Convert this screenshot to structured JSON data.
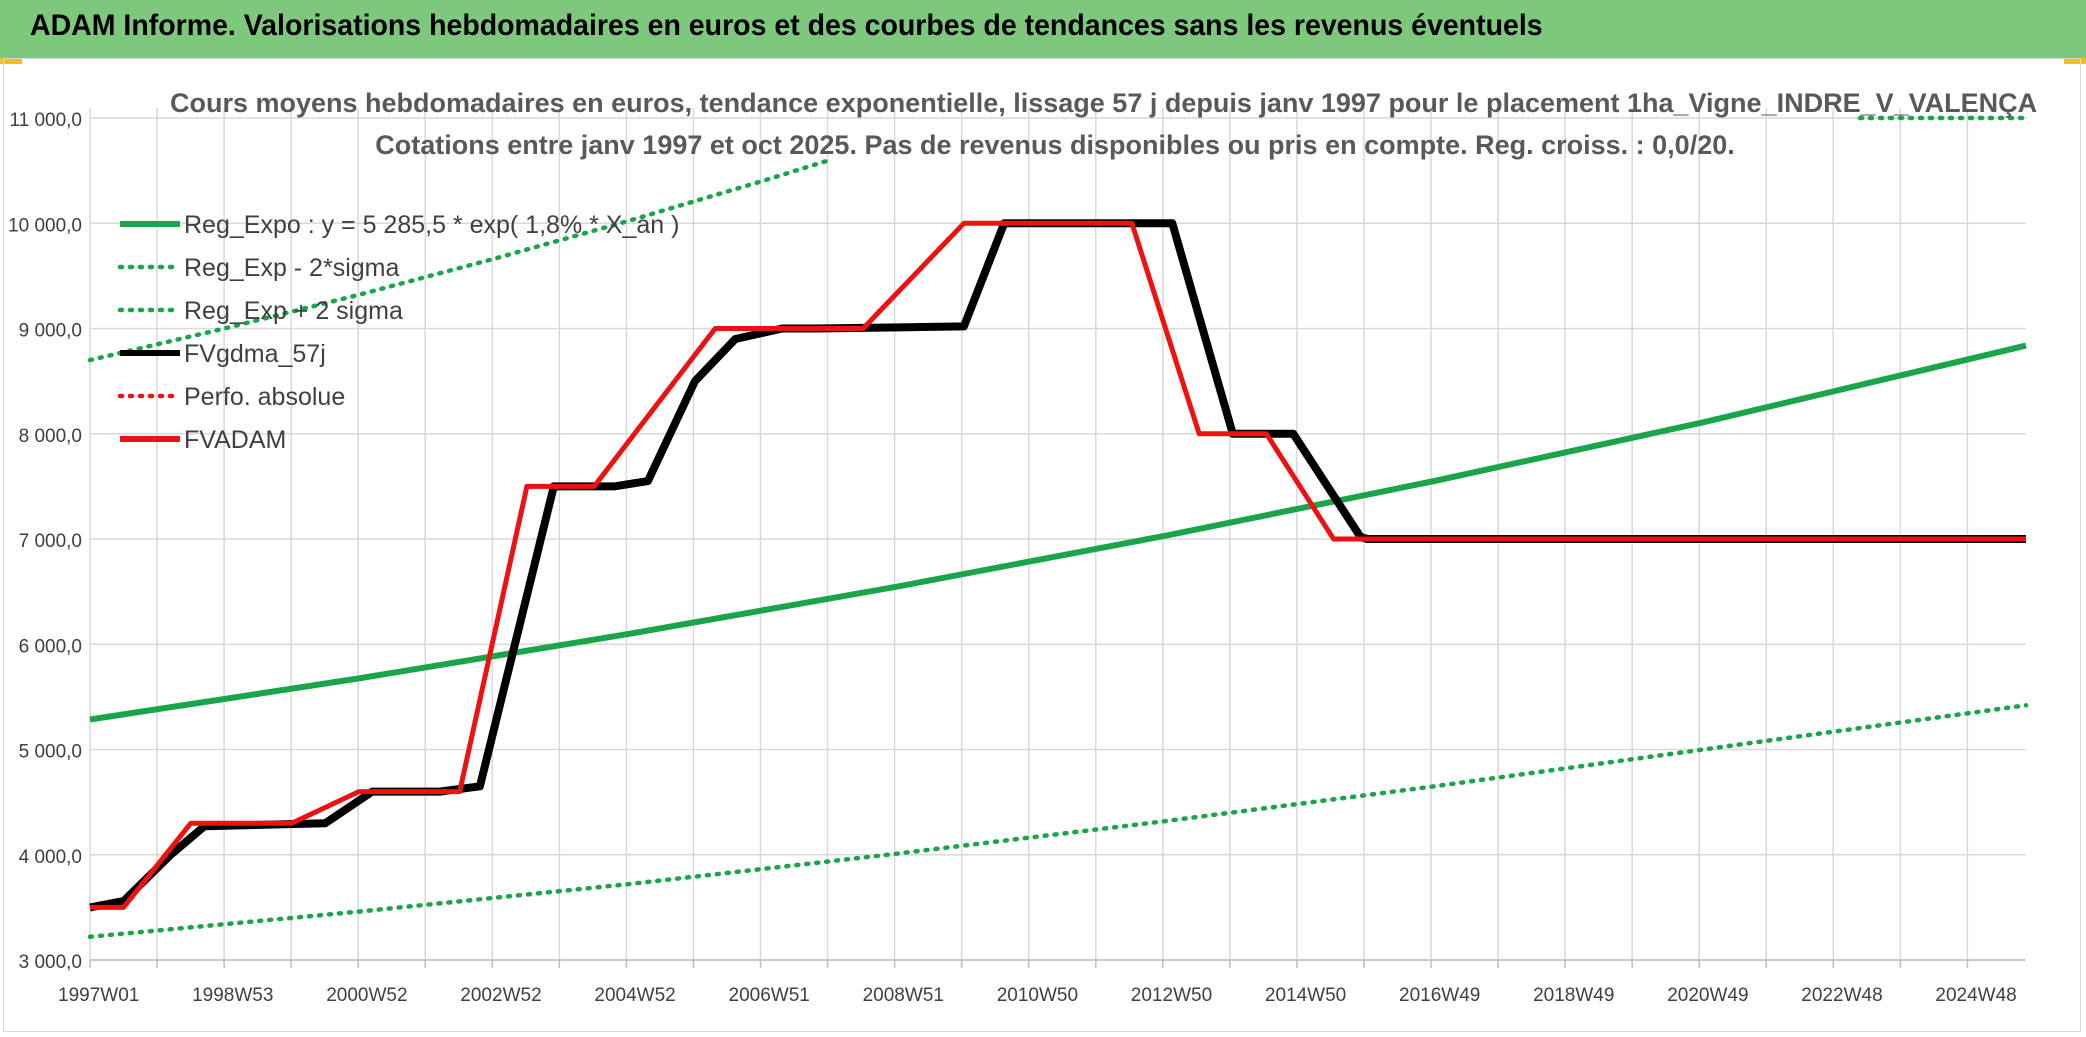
{
  "header": {
    "title": "ADAM Informe. Valorisations hebdomadaires en euros et des courbes de tendances sans les revenus éventuels"
  },
  "colors": {
    "header_bg": "#7dc87c",
    "green": "#1aa54a",
    "black": "#000000",
    "red": "#ee1111",
    "grid": "#d9d9d9"
  },
  "chart_data": {
    "type": "line",
    "title": "Cours moyens hebdomadaires en euros, tendance exponentielle, lissage 57 j depuis janv 1997 pour le placement 1ha_Vigne_INDRE_V_VALENÇA",
    "subtitle": "Cotations entre janv 1997 et oct 2025. Pas de revenus disponibles ou pris en compte. Reg. croiss. : 0,0/20.",
    "y_ticks": [
      "3 000,0",
      "4 000,0",
      "5 000,0",
      "6 000,0",
      "7 000,0",
      "8 000,0",
      "9 000,0",
      "10 000,0",
      "11 000,0"
    ],
    "x_ticks": [
      "1997W01",
      "1998W53",
      "2000W52",
      "2002W52",
      "2004W52",
      "2006W51",
      "2008W51",
      "2010W50",
      "2012W50",
      "2014W50",
      "2016W49",
      "2018W49",
      "2020W49",
      "2022W48",
      "2024W48"
    ],
    "ylim": [
      3000,
      11000
    ],
    "xlim": [
      1997.0,
      2025.8
    ],
    "grid": true,
    "legend_position": "top-left",
    "series": [
      {
        "name": "Reg_Expo : y = 5 285,5 * exp( 1,8% * X_an )",
        "style": "solid",
        "color": "#1aa54a",
        "x": [
          1997.0,
          2001.0,
          2005.0,
          2009.0,
          2013.0,
          2017.0,
          2021.0,
          2025.8
        ],
        "values": [
          5285.5,
          5676,
          6096,
          6547,
          7031,
          7551,
          8109,
          8838
        ]
      },
      {
        "name": "Reg_Exp - 2*sigma",
        "style": "dotted",
        "color": "#1aa54a",
        "x": [
          1997.0,
          2001.0,
          2005.0,
          2009.0,
          2013.0,
          2017.0,
          2021.0,
          2025.8
        ],
        "values": [
          3220,
          3460,
          3720,
          4010,
          4320,
          4650,
          5000,
          5420
        ]
      },
      {
        "name": "Reg_Exp + 2 sigma",
        "style": "dotted",
        "color": "#1aa54a",
        "x": [
          1997.0,
          1999.0,
          2001.0,
          2003.0,
          2005.0,
          2007.0,
          2008.0
        ],
        "values": [
          8700,
          9000,
          9320,
          9660,
          10020,
          10400,
          10600
        ]
      },
      {
        "name": "FVgdma_57j",
        "style": "solid",
        "color": "#000000",
        "x": [
          1997.0,
          1997.5,
          1998.2,
          1998.7,
          2000.5,
          2001.2,
          2002.2,
          2002.8,
          2003.9,
          2004.8,
          2005.3,
          2006.0,
          2006.6,
          2007.3,
          2007.8,
          2010.0,
          2010.6,
          2013.1,
          2014.0,
          2014.9,
          2015.9,
          2016.0,
          2025.8
        ],
        "values": [
          3500,
          3560,
          4000,
          4270,
          4300,
          4600,
          4600,
          4650,
          7500,
          7500,
          7550,
          8500,
          8900,
          9000,
          9000,
          9020,
          10000,
          10000,
          8000,
          8000,
          7020,
          7000,
          7000
        ]
      },
      {
        "name": "Perfo. absolue",
        "style": "dotted",
        "color": "#ee1111",
        "x": [],
        "values": []
      },
      {
        "name": "FVADAM",
        "style": "solid",
        "color": "#ee1111",
        "x": [
          1997.0,
          1997.5,
          1998.5,
          2000.0,
          2001.0,
          2002.5,
          2003.5,
          2004.5,
          2006.3,
          2006.5,
          2007.0,
          2008.0,
          2008.5,
          2010.0,
          2010.5,
          2012.5,
          2013.5,
          2014.2,
          2014.5,
          2015.5,
          2016.0,
          2025.8
        ],
        "values": [
          3500,
          3500,
          4300,
          4300,
          4600,
          4600,
          7500,
          7500,
          9000,
          9000,
          9000,
          9000,
          9000,
          10000,
          10000,
          10000,
          8000,
          8000,
          8000,
          7000,
          7000,
          7000
        ]
      }
    ]
  }
}
